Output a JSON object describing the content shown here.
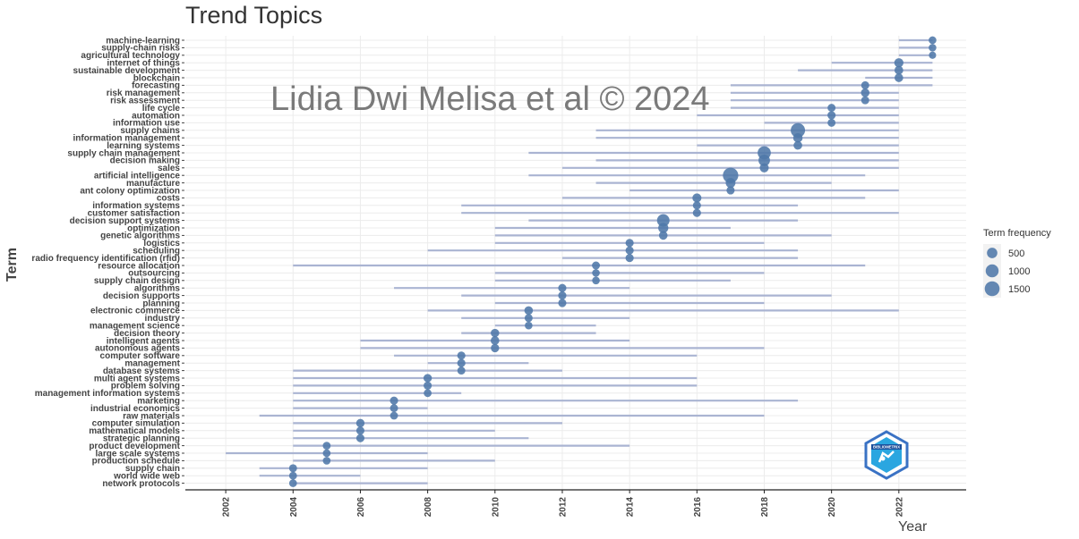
{
  "chart_data": {
    "type": "scatter",
    "title": "Trend Topics",
    "xlabel": "Year",
    "ylabel": "Term",
    "xlim": [
      2000.8,
      2024.0
    ],
    "x_ticks": [
      2002,
      2004,
      2006,
      2008,
      2010,
      2012,
      2014,
      2016,
      2018,
      2020,
      2022
    ],
    "grid": true,
    "legend": {
      "title": "Term frequency",
      "placement": "right",
      "entries": [
        {
          "label": "500",
          "value": 500
        },
        {
          "label": "1000",
          "value": 1000
        },
        {
          "label": "1500",
          "value": 1500
        }
      ]
    },
    "watermark": "Lidia Dwi Melisa et al © 2024",
    "logo_text": "BIBLIOMETRIX",
    "colors": {
      "point": "#4f78a8",
      "range": "#aab4d2",
      "grid": "#ececec"
    },
    "terms": [
      {
        "term": "machine-learning",
        "year_q1": 2022,
        "year_med": 2023,
        "year_q3": 2023,
        "freq": 160
      },
      {
        "term": "supply-chain risks",
        "year_q1": 2022,
        "year_med": 2023,
        "year_q3": 2023,
        "freq": 150
      },
      {
        "term": "agricultural technology",
        "year_q1": 2022,
        "year_med": 2023,
        "year_q3": 2023,
        "freq": 120
      },
      {
        "term": "internet of things",
        "year_q1": 2020,
        "year_med": 2022,
        "year_q3": 2023,
        "freq": 320
      },
      {
        "term": "sustainable development",
        "year_q1": 2019,
        "year_med": 2022,
        "year_q3": 2023,
        "freq": 260
      },
      {
        "term": "blockchain",
        "year_q1": 2021,
        "year_med": 2022,
        "year_q3": 2023,
        "freq": 250
      },
      {
        "term": "forecasting",
        "year_q1": 2017,
        "year_med": 2021,
        "year_q3": 2023,
        "freq": 190
      },
      {
        "term": "risk management",
        "year_q1": 2017,
        "year_med": 2021,
        "year_q3": 2022,
        "freq": 240
      },
      {
        "term": "risk assessment",
        "year_q1": 2017,
        "year_med": 2021,
        "year_q3": 2022,
        "freq": 180
      },
      {
        "term": "life cycle",
        "year_q1": 2017,
        "year_med": 2020,
        "year_q3": 2022,
        "freq": 180
      },
      {
        "term": "automation",
        "year_q1": 2016,
        "year_med": 2020,
        "year_q3": 2022,
        "freq": 200
      },
      {
        "term": "information use",
        "year_q1": 2018,
        "year_med": 2020,
        "year_q3": 2022,
        "freq": 180
      },
      {
        "term": "supply chains",
        "year_q1": 2013,
        "year_med": 2019,
        "year_q3": 2022,
        "freq": 1350
      },
      {
        "term": "information management",
        "year_q1": 2013,
        "year_med": 2019,
        "year_q3": 2022,
        "freq": 350
      },
      {
        "term": "learning systems",
        "year_q1": 2016,
        "year_med": 2019,
        "year_q3": 2022,
        "freq": 250
      },
      {
        "term": "supply chain management",
        "year_q1": 2011,
        "year_med": 2018,
        "year_q3": 2022,
        "freq": 1050
      },
      {
        "term": "decision making",
        "year_q1": 2013,
        "year_med": 2018,
        "year_q3": 2022,
        "freq": 700
      },
      {
        "term": "sales",
        "year_q1": 2012,
        "year_med": 2018,
        "year_q3": 2022,
        "freq": 300
      },
      {
        "term": "artificial intelligence",
        "year_q1": 2011,
        "year_med": 2017,
        "year_q3": 2021,
        "freq": 1650
      },
      {
        "term": "manufacture",
        "year_q1": 2013,
        "year_med": 2017,
        "year_q3": 2020,
        "freq": 400
      },
      {
        "term": "ant colony optimization",
        "year_q1": 2014,
        "year_med": 2017,
        "year_q3": 2022,
        "freq": 200
      },
      {
        "term": "costs",
        "year_q1": 2012,
        "year_med": 2016,
        "year_q3": 2021,
        "freq": 300
      },
      {
        "term": "information systems",
        "year_q1": 2009,
        "year_med": 2016,
        "year_q3": 2019,
        "freq": 200
      },
      {
        "term": "customer satisfaction",
        "year_q1": 2009,
        "year_med": 2016,
        "year_q3": 2022,
        "freq": 200
      },
      {
        "term": "decision support systems",
        "year_q1": 2011,
        "year_med": 2015,
        "year_q3": 2019,
        "freq": 900
      },
      {
        "term": "optimization",
        "year_q1": 2010,
        "year_med": 2015,
        "year_q3": 2017,
        "freq": 450
      },
      {
        "term": "genetic algorithms",
        "year_q1": 2010,
        "year_med": 2015,
        "year_q3": 2020,
        "freq": 250
      },
      {
        "term": "logistics",
        "year_q1": 2010,
        "year_med": 2014,
        "year_q3": 2018,
        "freq": 200
      },
      {
        "term": "scheduling",
        "year_q1": 2008,
        "year_med": 2014,
        "year_q3": 2019,
        "freq": 200
      },
      {
        "term": "radio frequency identification (rfid)",
        "year_q1": 2012,
        "year_med": 2014,
        "year_q3": 2019,
        "freq": 200
      },
      {
        "term": "resource allocation",
        "year_q1": 2004,
        "year_med": 2013,
        "year_q3": 2021,
        "freq": 180
      },
      {
        "term": "outsourcing",
        "year_q1": 2010,
        "year_med": 2013,
        "year_q3": 2018,
        "freq": 150
      },
      {
        "term": "supply chain design",
        "year_q1": 2010,
        "year_med": 2013,
        "year_q3": 2017,
        "freq": 150
      },
      {
        "term": "algorithms",
        "year_q1": 2007,
        "year_med": 2012,
        "year_q3": 2014,
        "freq": 200
      },
      {
        "term": "decision supports",
        "year_q1": 2009,
        "year_med": 2012,
        "year_q3": 2020,
        "freq": 200
      },
      {
        "term": "planning",
        "year_q1": 2010,
        "year_med": 2012,
        "year_q3": 2018,
        "freq": 200
      },
      {
        "term": "electronic commerce",
        "year_q1": 2008,
        "year_med": 2011,
        "year_q3": 2022,
        "freq": 250
      },
      {
        "term": "industry",
        "year_q1": 2009,
        "year_med": 2011,
        "year_q3": 2014,
        "freq": 180
      },
      {
        "term": "management science",
        "year_q1": 2010,
        "year_med": 2011,
        "year_q3": 2013,
        "freq": 150
      },
      {
        "term": "decision theory",
        "year_q1": 2009,
        "year_med": 2010,
        "year_q3": 2013,
        "freq": 230
      },
      {
        "term": "intelligent agents",
        "year_q1": 2006,
        "year_med": 2010,
        "year_q3": 2014,
        "freq": 250
      },
      {
        "term": "autonomous agents",
        "year_q1": 2006,
        "year_med": 2010,
        "year_q3": 2018,
        "freq": 220
      },
      {
        "term": "computer software",
        "year_q1": 2007,
        "year_med": 2009,
        "year_q3": 2016,
        "freq": 200
      },
      {
        "term": "management",
        "year_q1": 2008,
        "year_med": 2009,
        "year_q3": 2011,
        "freq": 200
      },
      {
        "term": "database systems",
        "year_q1": 2004,
        "year_med": 2009,
        "year_q3": 2012,
        "freq": 180
      },
      {
        "term": "multi agent systems",
        "year_q1": 2004,
        "year_med": 2008,
        "year_q3": 2016,
        "freq": 220
      },
      {
        "term": "problem solving",
        "year_q1": 2004,
        "year_med": 2008,
        "year_q3": 2016,
        "freq": 200
      },
      {
        "term": "management information systems",
        "year_q1": 2004,
        "year_med": 2008,
        "year_q3": 2009,
        "freq": 170
      },
      {
        "term": "marketing",
        "year_q1": 2004,
        "year_med": 2007,
        "year_q3": 2019,
        "freq": 200
      },
      {
        "term": "industrial economics",
        "year_q1": 2004,
        "year_med": 2007,
        "year_q3": 2008,
        "freq": 180
      },
      {
        "term": "raw materials",
        "year_q1": 2003,
        "year_med": 2007,
        "year_q3": 2018,
        "freq": 170
      },
      {
        "term": "computer simulation",
        "year_q1": 2004,
        "year_med": 2006,
        "year_q3": 2012,
        "freq": 230
      },
      {
        "term": "mathematical models",
        "year_q1": 2004,
        "year_med": 2006,
        "year_q3": 2010,
        "freq": 200
      },
      {
        "term": "strategic planning",
        "year_q1": 2004,
        "year_med": 2006,
        "year_q3": 2011,
        "freq": 200
      },
      {
        "term": "product development",
        "year_q1": 2004,
        "year_med": 2005,
        "year_q3": 2014,
        "freq": 170
      },
      {
        "term": "large scale systems",
        "year_q1": 2002,
        "year_med": 2005,
        "year_q3": 2008,
        "freq": 160
      },
      {
        "term": "production schedule",
        "year_q1": 2004,
        "year_med": 2005,
        "year_q3": 2010,
        "freq": 160
      },
      {
        "term": "supply chain",
        "year_q1": 2003,
        "year_med": 2004,
        "year_q3": 2008,
        "freq": 180
      },
      {
        "term": "world wide web",
        "year_q1": 2003,
        "year_med": 2004,
        "year_q3": 2006,
        "freq": 170
      },
      {
        "term": "network protocols",
        "year_q1": 2004,
        "year_med": 2004,
        "year_q3": 2008,
        "freq": 160
      }
    ]
  }
}
